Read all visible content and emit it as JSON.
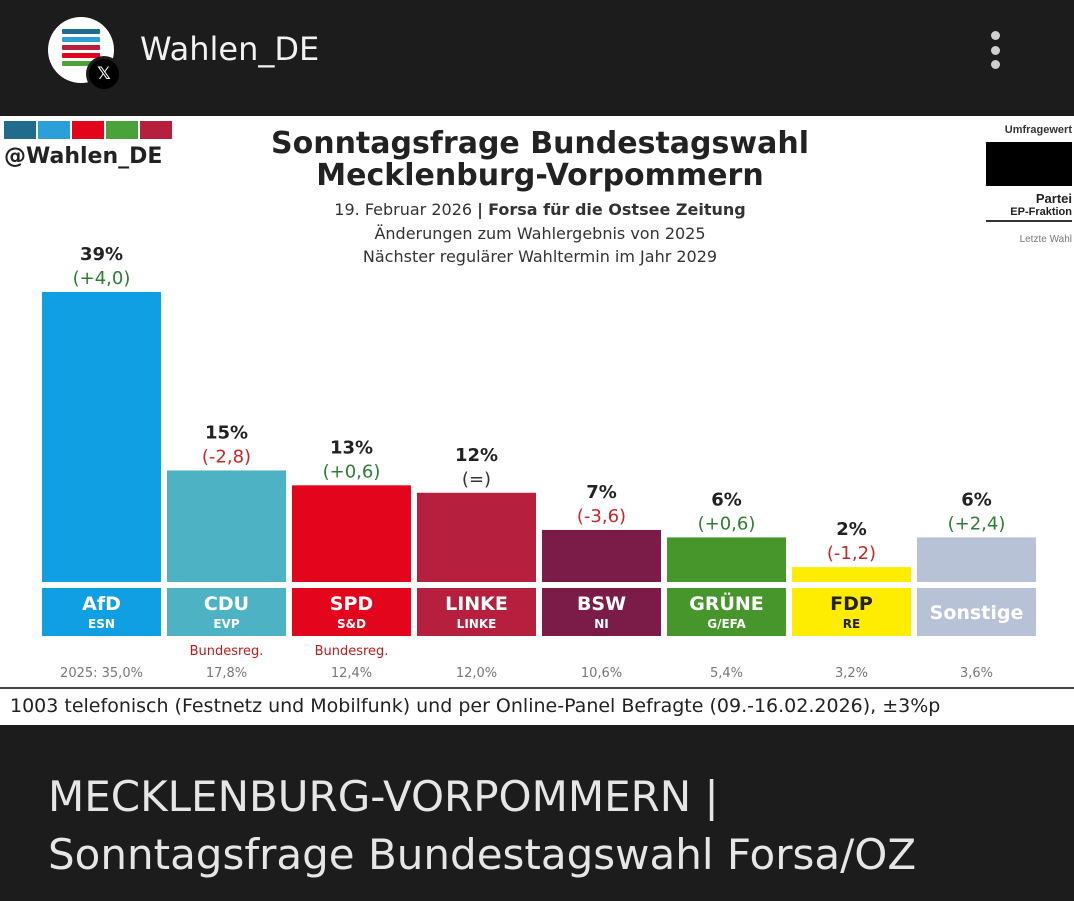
{
  "header": {
    "account_name": "Wahlen_DE",
    "avatar_icon": "wahlen-de-logo-icon",
    "badge_icon": "x-logo-icon",
    "badge_glyph": "𝕏",
    "more_icon": "more-vertical-icon"
  },
  "chart_header": {
    "handle": "@Wahlen_DE",
    "logo_colors": [
      "#1f6c8c",
      "#2a9fd8",
      "#e3051b",
      "#4aa23a",
      "#b71f3f"
    ],
    "title_line1": "Sonntagsfrage Bundestagswahl",
    "title_line2": "Mecklenburg-Vorpommern",
    "date": "19. Februar 2026",
    "separator": "|",
    "institute": "Forsa für die Ostsee Zeitung",
    "changes_note": "Änderungen zum Wahlergebnis von 2025",
    "next_election": "Nächster regulärer Wahltermin im Jahr 2029"
  },
  "legend": {
    "value_label": "Umfragewert",
    "party_label": "Partei",
    "group_label": "EP-Fraktion",
    "last_label": "Letzte Wahl"
  },
  "chart_data": {
    "type": "bar",
    "title": "Sonntagsfrage Bundestagswahl Mecklenburg-Vorpommern",
    "ylim": [
      0,
      39
    ],
    "categories": [
      "AfD",
      "CDU",
      "SPD",
      "LINKE",
      "BSW",
      "GRÜNE",
      "FDP",
      "Sonstige"
    ],
    "values": [
      39,
      15,
      13,
      12,
      7,
      6,
      2,
      6
    ],
    "value_labels": [
      "39%",
      "15%",
      "13%",
      "12%",
      "7%",
      "6%",
      "2%",
      "6%"
    ],
    "changes": [
      "(+4,0)",
      "(-2,8)",
      "(+0,6)",
      "(=)",
      "(-3,6)",
      "(+0,6)",
      "(-1,2)",
      "(+2,4)"
    ],
    "change_direction": [
      "up",
      "down",
      "up",
      "same",
      "down",
      "up",
      "down",
      "up"
    ],
    "ep_groups": [
      "ESN",
      "EVP",
      "S&D",
      "LINKE",
      "NI",
      "G/EFA",
      "RE",
      ""
    ],
    "gov_labels": [
      "",
      "Bundesreg.",
      "Bundesreg.",
      "",
      "",
      "",
      "",
      ""
    ],
    "last_election": [
      "2025: 35,0%",
      "17,8%",
      "12,4%",
      "12,0%",
      "10,6%",
      "5,4%",
      "3,2%",
      "3,6%"
    ],
    "bar_colors": [
      "#119fe4",
      "#4db3c4",
      "#e3051b",
      "#b71f3f",
      "#7b1c48",
      "#46962b",
      "#ffed00",
      "#b7c2d6"
    ],
    "label_text_colors": [
      "#ffffff",
      "#ffffff",
      "#ffffff",
      "#ffffff",
      "#ffffff",
      "#ffffff",
      "#222222",
      "#ffffff"
    ],
    "change_colors": {
      "up": "#2e7d32",
      "down": "#c62828",
      "same": "#333333"
    }
  },
  "footnote": "1003 telefonisch (Festnetz und Mobilfunk) und per Online-Panel Befragte (09.-16.02.2026), ±3%p",
  "caption": {
    "line1": "MECKLENBURG-VORPOMMERN |",
    "line2": "Sonntagsfrage Bundestagswahl Forsa/OZ"
  }
}
